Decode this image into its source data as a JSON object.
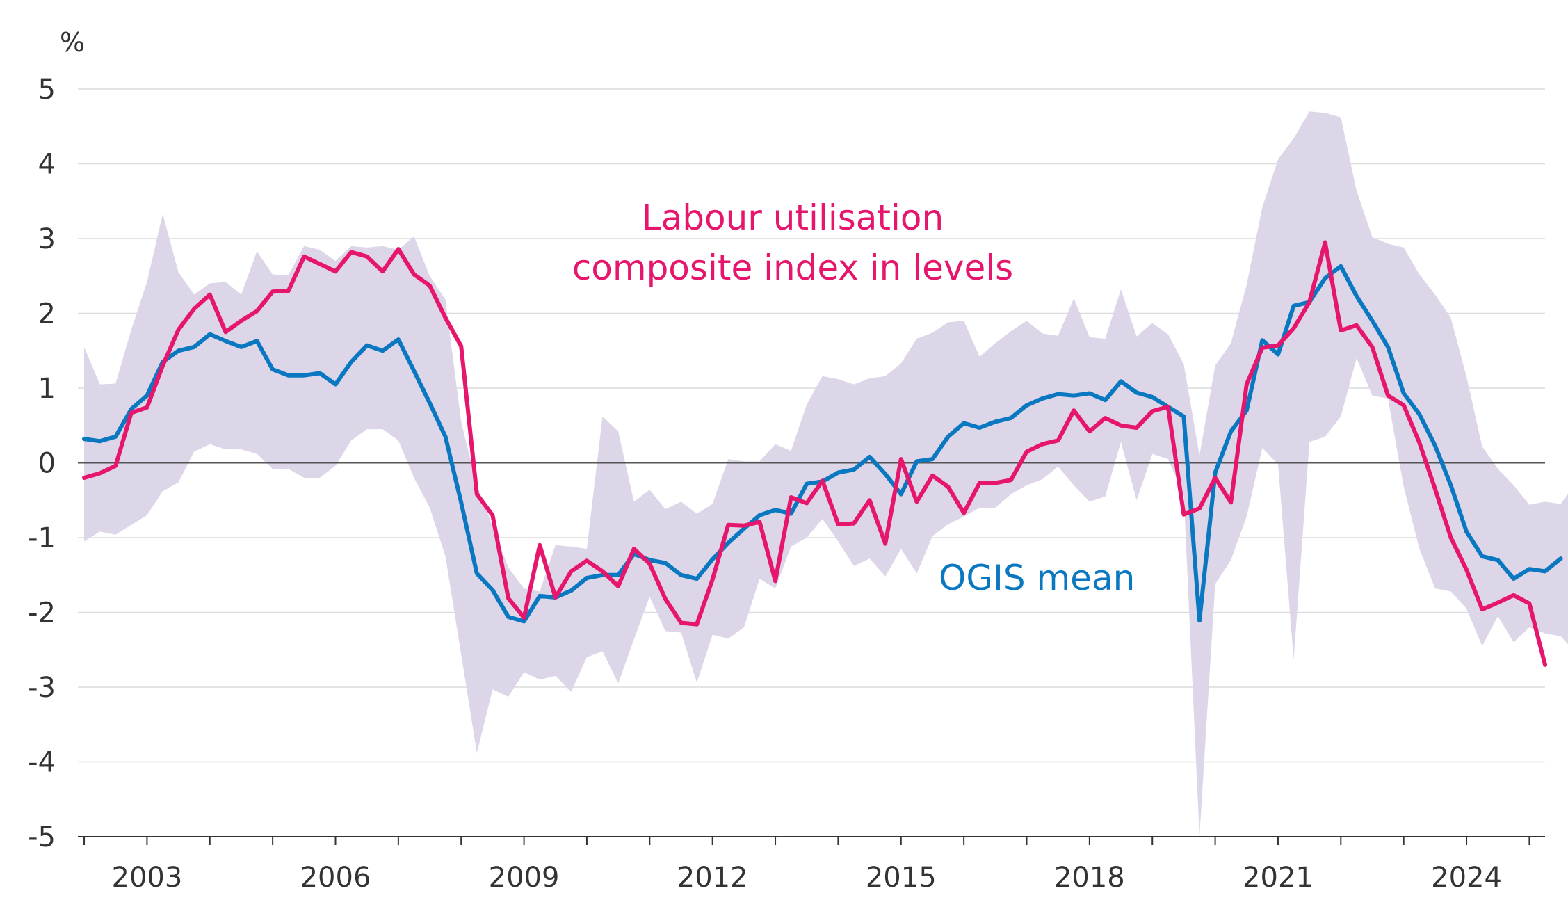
{
  "chart_data": {
    "type": "line",
    "unit_label": "%",
    "ylim": [
      -5,
      5
    ],
    "yticks": [
      -5,
      -4,
      -3,
      -2,
      -1,
      0,
      1,
      2,
      3,
      4,
      5
    ],
    "ytick_labels": [
      "-5",
      "-4",
      "-3",
      "-2",
      "-1",
      "0",
      "1",
      "2",
      "3",
      "4",
      "5"
    ],
    "xlim": [
      2002.4,
      2025.75
    ],
    "xticks": [
      2003,
      2006,
      2009,
      2012,
      2015,
      2018,
      2021,
      2024
    ],
    "xtick_labels": [
      "2003",
      "2006",
      "2009",
      "2012",
      "2015",
      "2018",
      "2021",
      "2024"
    ],
    "x_minor_ticks": [
      2002.5,
      2003.5,
      2004.5,
      2005.5,
      2006.5,
      2007.5,
      2008.5,
      2009.5,
      2010.5,
      2011.5,
      2012.5,
      2013.5,
      2014.5,
      2015.5,
      2016.5,
      2017.5,
      2018.5,
      2019.5,
      2020.5,
      2021.5,
      2022.5,
      2023.5,
      2024.5,
      2025.5
    ],
    "grid": true,
    "annotations": {
      "labour_line1": "Labour utilisation",
      "labour_line2": "composite index in levels",
      "ogis": "OGIS mean"
    },
    "colors": {
      "labour": "#e5166b",
      "ogis": "#0a78c0",
      "range": "#ddd5e8",
      "grid": "#dcdcdc",
      "zero": "#555555",
      "axis": "#333333"
    },
    "range_band": {
      "x_start": 2002.5,
      "x_step": 0.25,
      "upper": [
        1.55,
        1.05,
        1.06,
        1.78,
        2.42,
        3.33,
        2.55,
        2.25,
        2.4,
        2.42,
        2.25,
        2.83,
        2.52,
        2.51,
        2.9,
        2.85,
        2.7,
        2.9,
        2.88,
        2.9,
        2.85,
        3.03,
        2.5,
        2.18,
        0.55,
        -0.3,
        -0.85,
        -1.4,
        -1.68,
        -1.72,
        -1.1,
        -1.12,
        -1.15,
        0.62,
        0.42,
        -0.52,
        -0.36,
        -0.62,
        -0.52,
        -0.68,
        -0.55,
        0.05,
        0.02,
        0.02,
        0.25,
        0.16,
        0.78,
        1.16,
        1.12,
        1.05,
        1.13,
        1.16,
        1.33,
        1.66,
        1.74,
        1.88,
        1.9,
        1.42,
        1.6,
        1.76,
        1.9,
        1.73,
        1.7,
        2.2,
        1.68,
        1.66,
        2.32,
        1.69,
        1.87,
        1.72,
        1.32,
        0.1,
        1.3,
        1.6,
        2.38,
        3.42,
        4.06,
        4.34,
        4.7,
        4.68,
        4.62,
        3.64,
        3.02,
        2.93,
        2.88,
        2.52,
        2.25,
        1.94,
        1.15,
        0.22,
        -0.08,
        -0.3,
        -0.56,
        -0.52,
        -0.55,
        -0.25
      ],
      "lower": [
        -1.05,
        -0.92,
        -0.96,
        -0.83,
        -0.7,
        -0.38,
        -0.26,
        0.15,
        0.25,
        0.18,
        0.18,
        0.12,
        -0.08,
        -0.08,
        -0.2,
        -0.2,
        -0.04,
        0.3,
        0.45,
        0.45,
        0.3,
        -0.2,
        -0.6,
        -1.25,
        -2.56,
        -3.88,
        -3.03,
        -3.13,
        -2.8,
        -2.9,
        -2.85,
        -3.06,
        -2.6,
        -2.52,
        -2.95,
        -2.36,
        -1.79,
        -2.25,
        -2.27,
        -2.94,
        -2.3,
        -2.35,
        -2.2,
        -1.55,
        -1.68,
        -1.12,
        -1.0,
        -0.75,
        -1.05,
        -1.38,
        -1.28,
        -1.52,
        -1.15,
        -1.48,
        -0.98,
        -0.82,
        -0.72,
        -0.6,
        -0.6,
        -0.42,
        -0.3,
        -0.22,
        -0.05,
        -0.3,
        -0.52,
        -0.45,
        0.28,
        -0.5,
        0.12,
        0.05,
        -0.42,
        -5.0,
        -1.62,
        -1.3,
        -0.72,
        0.2,
        -0.02,
        -2.63,
        0.28,
        0.35,
        0.62,
        1.4,
        0.9,
        0.86,
        -0.32,
        -1.15,
        -1.68,
        -1.72,
        -1.95,
        -2.45,
        -2.05,
        -2.4,
        -2.2,
        -2.28,
        -2.32,
        -2.55
      ]
    },
    "series": [
      {
        "name": "Labour utilisation composite index in levels",
        "x_start": 2002.5,
        "x_step": 0.25,
        "values": [
          -0.2,
          -0.14,
          -0.04,
          0.67,
          0.74,
          1.3,
          1.78,
          2.06,
          2.25,
          1.75,
          1.9,
          2.03,
          2.29,
          2.3,
          2.76,
          2.66,
          2.56,
          2.82,
          2.76,
          2.56,
          2.86,
          2.52,
          2.37,
          1.94,
          1.56,
          -0.42,
          -0.7,
          -1.81,
          -2.07,
          -1.1,
          -1.8,
          -1.45,
          -1.31,
          -1.45,
          -1.65,
          -1.15,
          -1.35,
          -1.82,
          -2.14,
          -2.16,
          -1.56,
          -0.83,
          -0.84,
          -0.79,
          -1.58,
          -0.46,
          -0.54,
          -0.24,
          -0.82,
          -0.81,
          -0.5,
          -1.08,
          0.05,
          -0.52,
          -0.17,
          -0.32,
          -0.67,
          -0.27,
          -0.27,
          -0.23,
          0.15,
          0.25,
          0.3,
          0.7,
          0.42,
          0.6,
          0.5,
          0.47,
          0.69,
          0.75,
          -0.69,
          -0.61,
          -0.2,
          -0.53,
          1.05,
          1.54,
          1.57,
          1.8,
          2.15,
          2.95,
          1.77,
          1.84,
          1.55,
          0.9,
          0.77,
          0.27,
          -0.35,
          -1.0,
          -1.43,
          -1.96,
          -1.87,
          -1.77,
          -1.88,
          -2.7
        ]
      },
      {
        "name": "OGIS mean",
        "x_start": 2002.5,
        "x_step": 0.25,
        "values": [
          0.32,
          0.29,
          0.35,
          0.72,
          0.9,
          1.35,
          1.5,
          1.55,
          1.72,
          1.63,
          1.55,
          1.63,
          1.25,
          1.17,
          1.17,
          1.2,
          1.05,
          1.35,
          1.57,
          1.5,
          1.65,
          1.23,
          0.8,
          0.35,
          -0.53,
          -1.48,
          -1.7,
          -2.06,
          -2.12,
          -1.78,
          -1.8,
          -1.71,
          -1.54,
          -1.5,
          -1.5,
          -1.22,
          -1.3,
          -1.34,
          -1.5,
          -1.55,
          -1.29,
          -1.07,
          -0.88,
          -0.7,
          -0.63,
          -0.68,
          -0.28,
          -0.25,
          -0.13,
          -0.09,
          0.08,
          -0.15,
          -0.42,
          0.02,
          0.05,
          0.35,
          0.53,
          0.47,
          0.55,
          0.6,
          0.77,
          0.86,
          0.92,
          0.9,
          0.93,
          0.84,
          1.09,
          0.94,
          0.88,
          0.75,
          0.62,
          -2.11,
          -0.13,
          0.42,
          0.7,
          1.64,
          1.45,
          2.1,
          2.15,
          2.47,
          2.63,
          2.23,
          1.9,
          1.55,
          0.93,
          0.65,
          0.23,
          -0.3,
          -0.92,
          -1.25,
          -1.3,
          -1.55,
          -1.42,
          -1.45,
          -1.28
        ]
      }
    ]
  }
}
